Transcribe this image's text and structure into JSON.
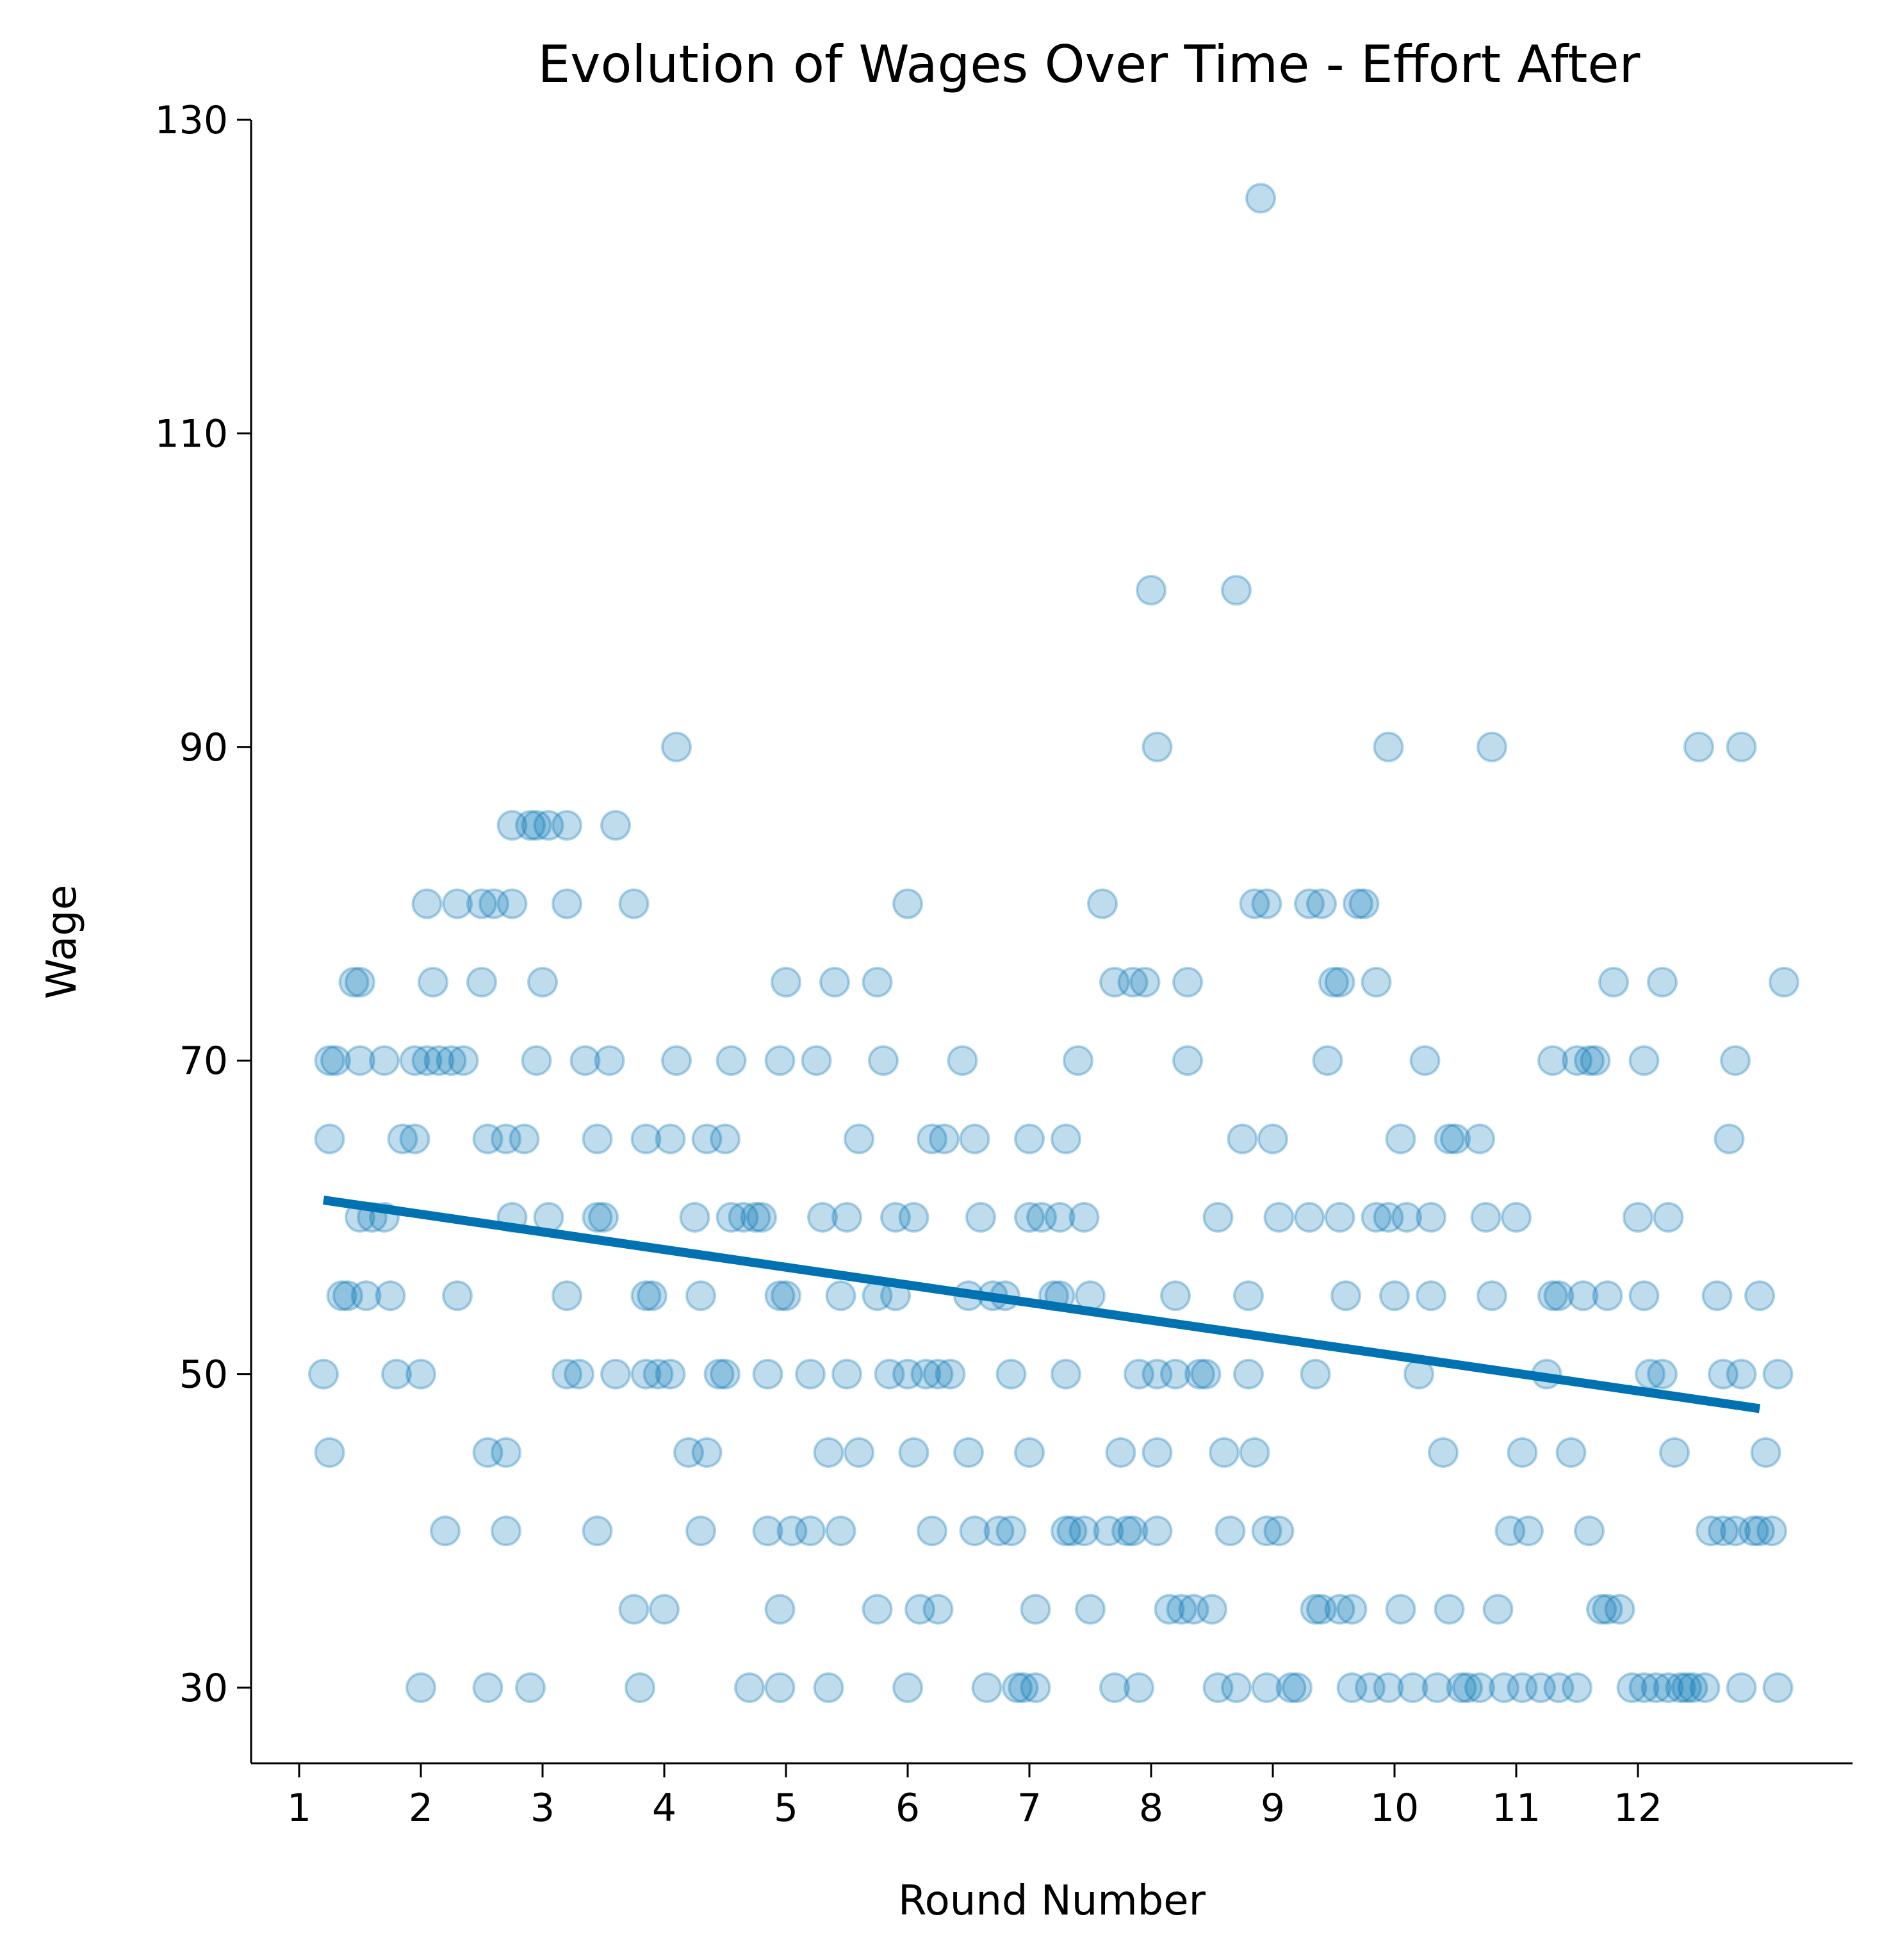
{
  "chart_data": {
    "type": "scatter",
    "title": "Evolution of Wages Over Time - Effort After",
    "xlabel": "Round Number",
    "ylabel": "Wage",
    "xlim": [
      0.6,
      13.6
    ],
    "ylim": [
      25,
      130
    ],
    "x_ticks": [
      1,
      2,
      3,
      4,
      5,
      6,
      7,
      8,
      9,
      10,
      11,
      12
    ],
    "x_tick_labels": [
      "1",
      "2",
      "3",
      "4",
      "5",
      "6",
      "7",
      "8",
      "9",
      "10",
      "11",
      "12"
    ],
    "y_ticks": [
      30,
      50,
      70,
      90,
      110,
      130
    ],
    "y_tick_labels": [
      "30",
      "50",
      "70",
      "90",
      "110",
      "130"
    ],
    "grid": false,
    "legend": "none",
    "colors": {
      "points": "#0072b2",
      "trend": "#0072b2"
    },
    "trend_line": {
      "x": [
        1.2,
        13.0
      ],
      "y": [
        61.1,
        47.8
      ]
    },
    "points": [
      [
        1.2,
        50
      ],
      [
        1.25,
        45
      ],
      [
        1.25,
        70
      ],
      [
        1.25,
        65
      ],
      [
        1.3,
        70
      ],
      [
        1.35,
        55
      ],
      [
        1.4,
        55
      ],
      [
        1.45,
        75
      ],
      [
        1.5,
        75
      ],
      [
        1.5,
        60
      ],
      [
        1.5,
        70
      ],
      [
        1.55,
        55
      ],
      [
        1.6,
        60
      ],
      [
        1.7,
        60
      ],
      [
        1.7,
        70
      ],
      [
        1.75,
        55
      ],
      [
        1.8,
        50
      ],
      [
        1.85,
        65
      ],
      [
        1.95,
        65
      ],
      [
        1.95,
        70
      ],
      [
        2.0,
        50
      ],
      [
        2.0,
        30
      ],
      [
        2.05,
        80
      ],
      [
        2.05,
        70
      ],
      [
        2.1,
        75
      ],
      [
        2.15,
        70
      ],
      [
        2.2,
        40
      ],
      [
        2.25,
        70
      ],
      [
        2.3,
        55
      ],
      [
        2.3,
        80
      ],
      [
        2.35,
        70
      ],
      [
        2.5,
        80
      ],
      [
        2.5,
        75
      ],
      [
        2.55,
        65
      ],
      [
        2.55,
        45
      ],
      [
        2.55,
        30
      ],
      [
        2.6,
        80
      ],
      [
        2.7,
        65
      ],
      [
        2.7,
        45
      ],
      [
        2.7,
        40
      ],
      [
        2.75,
        85
      ],
      [
        2.75,
        60
      ],
      [
        2.75,
        80
      ],
      [
        2.85,
        65
      ],
      [
        2.9,
        85
      ],
      [
        2.9,
        30
      ],
      [
        2.95,
        85
      ],
      [
        2.95,
        70
      ],
      [
        3.0,
        75
      ],
      [
        3.05,
        85
      ],
      [
        3.05,
        60
      ],
      [
        3.2,
        85
      ],
      [
        3.2,
        55
      ],
      [
        3.2,
        80
      ],
      [
        3.2,
        50
      ],
      [
        3.3,
        50
      ],
      [
        3.35,
        70
      ],
      [
        3.45,
        60
      ],
      [
        3.45,
        65
      ],
      [
        3.45,
        40
      ],
      [
        3.5,
        60
      ],
      [
        3.55,
        70
      ],
      [
        3.6,
        50
      ],
      [
        3.6,
        85
      ],
      [
        3.75,
        80
      ],
      [
        3.75,
        35
      ],
      [
        3.8,
        30
      ],
      [
        3.85,
        65
      ],
      [
        3.85,
        55
      ],
      [
        3.85,
        50
      ],
      [
        3.9,
        55
      ],
      [
        3.95,
        50
      ],
      [
        4.0,
        35
      ],
      [
        4.05,
        50
      ],
      [
        4.05,
        65
      ],
      [
        4.1,
        70
      ],
      [
        4.1,
        90
      ],
      [
        4.2,
        45
      ],
      [
        4.25,
        60
      ],
      [
        4.3,
        55
      ],
      [
        4.3,
        40
      ],
      [
        4.35,
        45
      ],
      [
        4.35,
        65
      ],
      [
        4.45,
        50
      ],
      [
        4.5,
        50
      ],
      [
        4.5,
        65
      ],
      [
        4.55,
        60
      ],
      [
        4.55,
        70
      ],
      [
        4.65,
        60
      ],
      [
        4.7,
        30
      ],
      [
        4.75,
        60
      ],
      [
        4.8,
        60
      ],
      [
        4.85,
        40
      ],
      [
        4.85,
        50
      ],
      [
        4.95,
        30
      ],
      [
        4.95,
        70
      ],
      [
        4.95,
        55
      ],
      [
        4.95,
        35
      ],
      [
        5.0,
        75
      ],
      [
        5.0,
        55
      ],
      [
        5.05,
        40
      ],
      [
        5.2,
        50
      ],
      [
        5.2,
        40
      ],
      [
        5.25,
        70
      ],
      [
        5.3,
        60
      ],
      [
        5.35,
        30
      ],
      [
        5.35,
        45
      ],
      [
        5.4,
        75
      ],
      [
        5.45,
        55
      ],
      [
        5.45,
        40
      ],
      [
        5.5,
        50
      ],
      [
        5.5,
        60
      ],
      [
        5.6,
        45
      ],
      [
        5.6,
        65
      ],
      [
        5.75,
        35
      ],
      [
        5.75,
        55
      ],
      [
        5.75,
        75
      ],
      [
        5.8,
        70
      ],
      [
        5.85,
        50
      ],
      [
        5.9,
        60
      ],
      [
        5.9,
        55
      ],
      [
        6.0,
        50
      ],
      [
        6.0,
        30
      ],
      [
        6.0,
        80
      ],
      [
        6.05,
        60
      ],
      [
        6.05,
        45
      ],
      [
        6.1,
        35
      ],
      [
        6.15,
        50
      ],
      [
        6.2,
        40
      ],
      [
        6.2,
        65
      ],
      [
        6.25,
        35
      ],
      [
        6.25,
        50
      ],
      [
        6.3,
        65
      ],
      [
        6.35,
        50
      ],
      [
        6.45,
        70
      ],
      [
        6.5,
        45
      ],
      [
        6.5,
        55
      ],
      [
        6.55,
        40
      ],
      [
        6.55,
        65
      ],
      [
        6.6,
        60
      ],
      [
        6.65,
        30
      ],
      [
        6.7,
        55
      ],
      [
        6.75,
        40
      ],
      [
        6.8,
        55
      ],
      [
        6.85,
        40
      ],
      [
        6.85,
        50
      ],
      [
        6.9,
        30
      ],
      [
        6.95,
        30
      ],
      [
        7.0,
        60
      ],
      [
        7.0,
        65
      ],
      [
        7.0,
        45
      ],
      [
        7.05,
        30
      ],
      [
        7.05,
        35
      ],
      [
        7.1,
        60
      ],
      [
        7.2,
        55
      ],
      [
        7.25,
        60
      ],
      [
        7.25,
        55
      ],
      [
        7.3,
        50
      ],
      [
        7.3,
        65
      ],
      [
        7.3,
        40
      ],
      [
        7.35,
        40
      ],
      [
        7.4,
        70
      ],
      [
        7.45,
        60
      ],
      [
        7.45,
        40
      ],
      [
        7.5,
        55
      ],
      [
        7.5,
        35
      ],
      [
        7.6,
        80
      ],
      [
        7.65,
        40
      ],
      [
        7.7,
        30
      ],
      [
        7.7,
        75
      ],
      [
        7.75,
        45
      ],
      [
        7.8,
        40
      ],
      [
        7.85,
        75
      ],
      [
        7.85,
        40
      ],
      [
        7.9,
        30
      ],
      [
        7.9,
        50
      ],
      [
        7.95,
        75
      ],
      [
        8.0,
        100
      ],
      [
        8.05,
        50
      ],
      [
        8.05,
        90
      ],
      [
        8.05,
        45
      ],
      [
        8.05,
        40
      ],
      [
        8.15,
        35
      ],
      [
        8.2,
        55
      ],
      [
        8.2,
        50
      ],
      [
        8.25,
        35
      ],
      [
        8.3,
        75
      ],
      [
        8.3,
        70
      ],
      [
        8.35,
        35
      ],
      [
        8.4,
        50
      ],
      [
        8.45,
        50
      ],
      [
        8.5,
        35
      ],
      [
        8.55,
        60
      ],
      [
        8.55,
        30
      ],
      [
        8.6,
        45
      ],
      [
        8.65,
        40
      ],
      [
        8.7,
        30
      ],
      [
        8.7,
        100
      ],
      [
        8.75,
        65
      ],
      [
        8.8,
        50
      ],
      [
        8.8,
        55
      ],
      [
        8.85,
        45
      ],
      [
        8.85,
        80
      ],
      [
        8.9,
        125
      ],
      [
        8.95,
        30
      ],
      [
        8.95,
        80
      ],
      [
        8.95,
        40
      ],
      [
        9.0,
        65
      ],
      [
        9.05,
        60
      ],
      [
        9.05,
        40
      ],
      [
        9.15,
        30
      ],
      [
        9.2,
        30
      ],
      [
        9.3,
        60
      ],
      [
        9.3,
        80
      ],
      [
        9.35,
        35
      ],
      [
        9.35,
        50
      ],
      [
        9.4,
        80
      ],
      [
        9.4,
        35
      ],
      [
        9.45,
        70
      ],
      [
        9.5,
        75
      ],
      [
        9.55,
        75
      ],
      [
        9.55,
        60
      ],
      [
        9.55,
        35
      ],
      [
        9.6,
        55
      ],
      [
        9.65,
        35
      ],
      [
        9.65,
        30
      ],
      [
        9.7,
        80
      ],
      [
        9.75,
        80
      ],
      [
        9.8,
        30
      ],
      [
        9.85,
        75
      ],
      [
        9.85,
        60
      ],
      [
        9.95,
        90
      ],
      [
        9.95,
        30
      ],
      [
        9.95,
        60
      ],
      [
        10.0,
        55
      ],
      [
        10.05,
        65
      ],
      [
        10.05,
        35
      ],
      [
        10.1,
        60
      ],
      [
        10.15,
        30
      ],
      [
        10.2,
        50
      ],
      [
        10.25,
        70
      ],
      [
        10.3,
        60
      ],
      [
        10.3,
        55
      ],
      [
        10.35,
        30
      ],
      [
        10.4,
        45
      ],
      [
        10.45,
        35
      ],
      [
        10.45,
        65
      ],
      [
        10.5,
        65
      ],
      [
        10.55,
        30
      ],
      [
        10.6,
        30
      ],
      [
        10.7,
        30
      ],
      [
        10.7,
        65
      ],
      [
        10.75,
        60
      ],
      [
        10.8,
        90
      ],
      [
        10.8,
        55
      ],
      [
        10.85,
        35
      ],
      [
        10.9,
        30
      ],
      [
        10.95,
        40
      ],
      [
        11.0,
        60
      ],
      [
        11.05,
        45
      ],
      [
        11.05,
        30
      ],
      [
        11.1,
        40
      ],
      [
        11.2,
        30
      ],
      [
        11.25,
        50
      ],
      [
        11.3,
        55
      ],
      [
        11.3,
        70
      ],
      [
        11.35,
        55
      ],
      [
        11.35,
        30
      ],
      [
        11.45,
        45
      ],
      [
        11.5,
        70
      ],
      [
        11.5,
        30
      ],
      [
        11.55,
        55
      ],
      [
        11.6,
        40
      ],
      [
        11.6,
        70
      ],
      [
        11.65,
        70
      ],
      [
        11.7,
        35
      ],
      [
        11.75,
        55
      ],
      [
        11.75,
        35
      ],
      [
        11.8,
        75
      ],
      [
        11.85,
        35
      ],
      [
        11.95,
        30
      ],
      [
        12.0,
        60
      ],
      [
        12.05,
        55
      ],
      [
        12.05,
        70
      ],
      [
        12.05,
        30
      ],
      [
        12.1,
        50
      ],
      [
        12.15,
        30
      ],
      [
        12.2,
        50
      ],
      [
        12.2,
        75
      ],
      [
        12.25,
        60
      ],
      [
        12.25,
        30
      ],
      [
        12.3,
        45
      ],
      [
        12.35,
        30
      ],
      [
        12.4,
        30
      ],
      [
        12.45,
        30
      ],
      [
        12.5,
        90
      ],
      [
        12.55,
        30
      ],
      [
        12.6,
        40
      ],
      [
        12.65,
        55
      ],
      [
        12.7,
        40
      ],
      [
        12.7,
        50
      ],
      [
        12.75,
        65
      ],
      [
        12.8,
        70
      ],
      [
        12.8,
        40
      ],
      [
        12.85,
        50
      ],
      [
        12.85,
        30
      ],
      [
        12.85,
        90
      ],
      [
        12.95,
        40
      ],
      [
        13.0,
        40
      ],
      [
        13.0,
        55
      ],
      [
        13.05,
        45
      ],
      [
        13.1,
        40
      ],
      [
        13.15,
        50
      ],
      [
        13.15,
        30
      ],
      [
        13.2,
        75
      ]
    ]
  }
}
